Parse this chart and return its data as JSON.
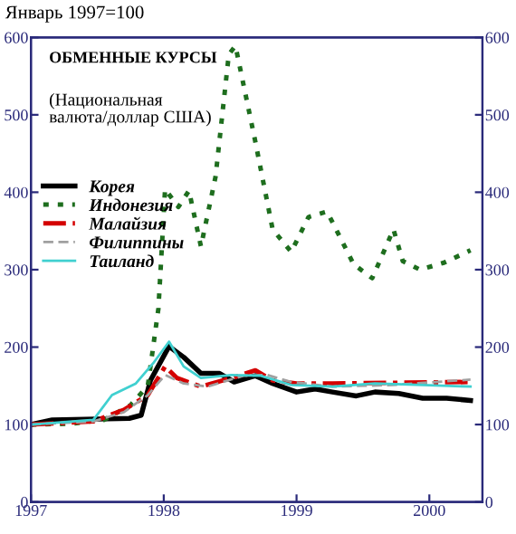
{
  "chart_data": {
    "type": "line",
    "title": "ОБМЕННЫЕ КУРСЫ",
    "subtitle": "(Национальная\nвалюта/доллар США)",
    "ylabel": "Январь 1997=100",
    "xlim": [
      1997,
      2000.4
    ],
    "xticks": [
      1997,
      1998,
      1999,
      2000
    ],
    "ylim": [
      0,
      600
    ],
    "yticks": [
      0,
      100,
      200,
      300,
      400,
      500,
      600
    ],
    "y2lim": [
      0,
      600
    ],
    "y2ticks": [
      0,
      100,
      200,
      300,
      400,
      500,
      600
    ],
    "grid": false,
    "legend": "top left",
    "series": [
      {
        "name": "Корея",
        "color": "#000000",
        "line_style": "solid",
        "x": [
          1997.0,
          1997.16,
          1997.74,
          1997.83,
          1997.9,
          1998.04,
          1998.15,
          1998.28,
          1998.42,
          1998.53,
          1998.69,
          1998.82,
          1999.0,
          1999.14,
          1999.27,
          1999.45,
          1999.59,
          1999.77,
          1999.95,
          2000.13,
          2000.31
        ],
        "values": [
          100,
          106,
          108,
          112,
          157,
          201,
          187,
          166,
          166,
          155,
          163,
          153,
          142,
          146,
          142,
          137,
          142,
          140,
          134,
          134,
          131
        ]
      },
      {
        "name": "Индонезия",
        "color": "#1e6e1e",
        "line_style": "dotted",
        "x": [
          1997.0,
          1997.3,
          1997.55,
          1997.75,
          1997.88,
          1997.96,
          1998.01,
          1998.11,
          1998.19,
          1998.28,
          1998.39,
          1998.49,
          1998.54,
          1998.69,
          1998.82,
          1998.96,
          1999.09,
          1999.23,
          1999.43,
          1999.57,
          1999.73,
          1999.8,
          1999.93,
          2000.11,
          2000.31
        ],
        "values": [
          100,
          101,
          106,
          125,
          150,
          250,
          404,
          381,
          402,
          330,
          420,
          578,
          589,
          465,
          352,
          323,
          368,
          375,
          307,
          289,
          352,
          311,
          300,
          309,
          325
        ]
      },
      {
        "name": "Малайзия",
        "color": "#d40000",
        "line_style": "dashdot",
        "x": [
          1997.0,
          1997.47,
          1997.7,
          1997.88,
          1998.01,
          1998.1,
          1998.28,
          1998.51,
          1998.69,
          1998.82,
          1999.0,
          1999.27,
          2000.31
        ],
        "values": [
          100,
          104,
          119,
          138,
          175,
          160,
          149,
          160,
          170,
          157,
          153,
          153,
          155
        ]
      },
      {
        "name": "Филиппины",
        "color": "#a0a0a0",
        "line_style": "dashed",
        "x": [
          1997.0,
          1997.47,
          1997.7,
          1997.88,
          1998.01,
          1998.15,
          1998.33,
          1998.6,
          1998.78,
          1998.96,
          1999.27,
          1999.72,
          2000.31
        ],
        "values": [
          100,
          104,
          116,
          138,
          164,
          153,
          149,
          163,
          164,
          155,
          149,
          151,
          158
        ]
      },
      {
        "name": "Таиланд",
        "color": "#40d0d0",
        "line_style": "solid",
        "x": [
          1997.0,
          1997.47,
          1997.61,
          1997.79,
          1997.92,
          1998.04,
          1998.15,
          1998.28,
          1998.51,
          1998.73,
          1998.96,
          1999.27,
          1999.59,
          1999.95,
          2000.31
        ],
        "values": [
          100,
          106,
          138,
          153,
          179,
          207,
          175,
          160,
          164,
          163,
          151,
          149,
          153,
          151,
          149
        ]
      }
    ]
  }
}
